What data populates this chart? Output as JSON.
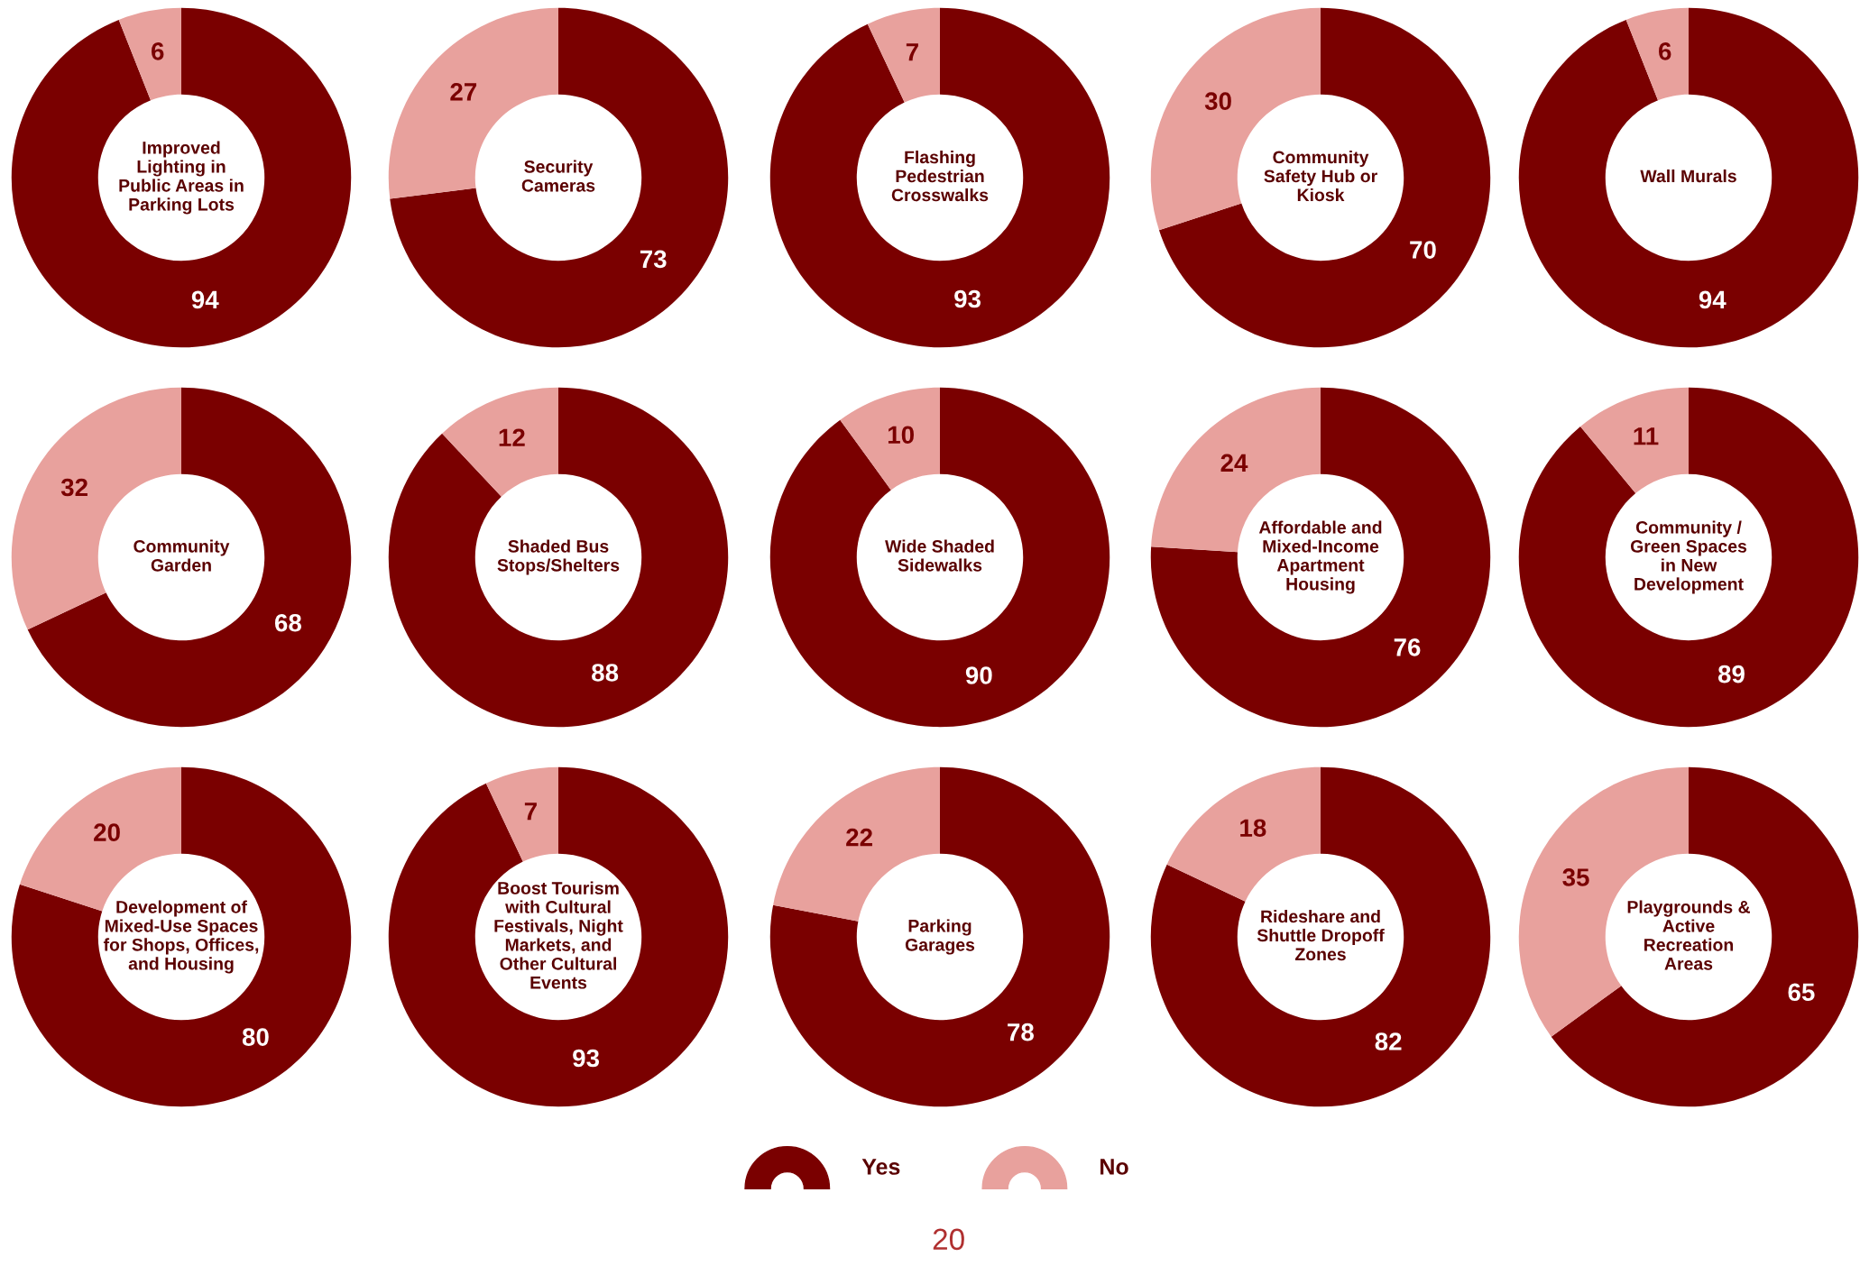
{
  "chart_data": [
    {
      "type": "donut",
      "title": "Improved\nLighting in\nPublic Areas in\nParking Lots",
      "categories": [
        "Yes",
        "No"
      ],
      "values": [
        94,
        6
      ],
      "colors": [
        "#7a0000",
        "#e8a19d"
      ],
      "data_labels": true,
      "legend": "bottom"
    },
    {
      "type": "donut",
      "title": "Security\nCameras",
      "values": [
        73,
        27
      ],
      "colors": [
        "#7a0000",
        "#e8a19d"
      ],
      "data_labels": true
    },
    {
      "type": "donut",
      "title": "Flashing\nPedestrian\nCrosswalks",
      "values": [
        93,
        7
      ],
      "colors": [
        "#7a0000",
        "#e8a19d"
      ],
      "data_labels": true
    },
    {
      "type": "donut",
      "title": "Community\nSafety Hub or\nKiosk",
      "values": [
        70,
        30
      ],
      "colors": [
        "#7a0000",
        "#e8a19d"
      ],
      "data_labels": true
    },
    {
      "type": "donut",
      "title": "Wall Murals",
      "values": [
        94,
        6
      ],
      "colors": [
        "#7a0000",
        "#e8a19d"
      ],
      "data_labels": true
    },
    {
      "type": "donut",
      "title": "Community\nGarden",
      "values": [
        68,
        32
      ],
      "colors": [
        "#7a0000",
        "#e8a19d"
      ],
      "data_labels": true
    },
    {
      "type": "donut",
      "title": "Shaded Bus\nStops/Shelters",
      "values": [
        88,
        12
      ],
      "colors": [
        "#7a0000",
        "#e8a19d"
      ],
      "data_labels": true
    },
    {
      "type": "donut",
      "title": "Wide Shaded\nSidewalks",
      "values": [
        90,
        10
      ],
      "colors": [
        "#7a0000",
        "#e8a19d"
      ],
      "data_labels": true
    },
    {
      "type": "donut",
      "title": "Affordable and\nMixed-Income\nApartment\nHousing",
      "values": [
        76,
        24
      ],
      "colors": [
        "#7a0000",
        "#e8a19d"
      ],
      "data_labels": true
    },
    {
      "type": "donut",
      "title": "Community /\nGreen Spaces\nin New\nDevelopment",
      "values": [
        89,
        11
      ],
      "colors": [
        "#7a0000",
        "#e8a19d"
      ],
      "data_labels": true
    },
    {
      "type": "donut",
      "title": "Development of\nMixed-Use Spaces\nfor Shops, Offices,\nand Housing",
      "values": [
        80,
        20
      ],
      "colors": [
        "#7a0000",
        "#e8a19d"
      ],
      "data_labels": true
    },
    {
      "type": "donut",
      "title": "Boost Tourism\nwith Cultural\nFestivals, Night\nMarkets, and\nOther Cultural\nEvents",
      "values": [
        93,
        7
      ],
      "colors": [
        "#7a0000",
        "#e8a19d"
      ],
      "data_labels": true
    },
    {
      "type": "donut",
      "title": "Parking\nGarages",
      "values": [
        78,
        22
      ],
      "colors": [
        "#7a0000",
        "#e8a19d"
      ],
      "data_labels": true
    },
    {
      "type": "donut",
      "title": "Rideshare and\nShuttle Dropoff\nZones",
      "values": [
        82,
        18
      ],
      "colors": [
        "#7a0000",
        "#e8a19d"
      ],
      "data_labels": true
    },
    {
      "type": "donut",
      "title": "Playgrounds &\nActive\nRecreation\nAreas",
      "values": [
        65,
        35
      ],
      "colors": [
        "#7a0000",
        "#e8a19d"
      ],
      "data_labels": true,
      "annotations": [
        "20"
      ]
    }
  ]
}
